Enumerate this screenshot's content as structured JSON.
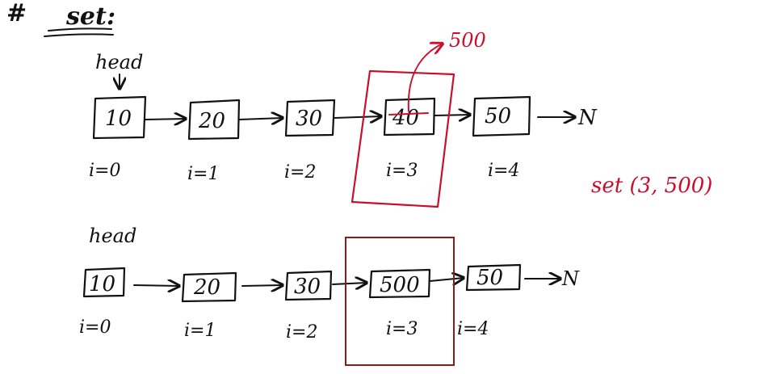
{
  "title": {
    "hash": "#",
    "word": "set",
    "colon": ":"
  },
  "top": {
    "head_label": "head",
    "nodes": [
      {
        "value": "10",
        "index": "i=0"
      },
      {
        "value": "20",
        "index": "i=1"
      },
      {
        "value": "30",
        "index": "i=2"
      },
      {
        "value": "40",
        "index": "i=3"
      },
      {
        "value": "50",
        "index": "i=4"
      }
    ],
    "null_label": "N",
    "new_value": "500",
    "call": "set (3, 500)"
  },
  "bottom": {
    "head_label": "head",
    "nodes": [
      {
        "value": "10",
        "index": "i=0"
      },
      {
        "value": "20",
        "index": "i=1"
      },
      {
        "value": "30",
        "index": "i=2"
      },
      {
        "value": "500",
        "index": "i=3"
      },
      {
        "value": "50",
        "index": "i=4"
      }
    ],
    "null_label": "N"
  },
  "colors": {
    "ink": "#111111",
    "red": "#c8102e",
    "dark_red": "#8b1a1a"
  }
}
